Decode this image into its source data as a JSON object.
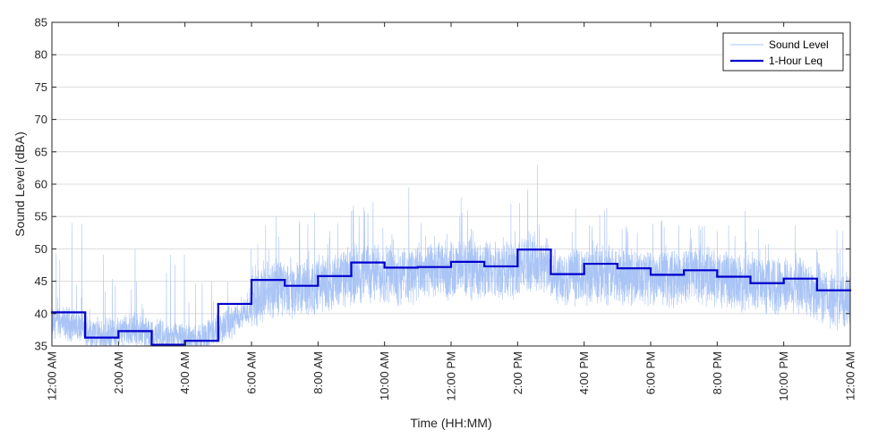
{
  "chart_data": {
    "type": "line",
    "title": "",
    "xlabel": "Time (HH:MM)",
    "ylabel": "Sound Level (dBA)",
    "xlim_hours": [
      0,
      24
    ],
    "ylim": [
      35,
      85
    ],
    "yticks": [
      35,
      40,
      45,
      50,
      55,
      60,
      65,
      70,
      75,
      80,
      85
    ],
    "xticks": [
      {
        "hour": 0,
        "label": "12:00 AM"
      },
      {
        "hour": 2,
        "label": "2:00 AM"
      },
      {
        "hour": 4,
        "label": "4:00 AM"
      },
      {
        "hour": 6,
        "label": "6:00 AM"
      },
      {
        "hour": 8,
        "label": "8:00 AM"
      },
      {
        "hour": 10,
        "label": "10:00 AM"
      },
      {
        "hour": 12,
        "label": "12:00 PM"
      },
      {
        "hour": 14,
        "label": "2:00 PM"
      },
      {
        "hour": 16,
        "label": "4:00 PM"
      },
      {
        "hour": 18,
        "label": "6:00 PM"
      },
      {
        "hour": 20,
        "label": "8:00 PM"
      },
      {
        "hour": 22,
        "label": "10:00 PM"
      },
      {
        "hour": 24,
        "label": "12:00 AM"
      }
    ],
    "grid": "horizontal",
    "legend_position": "top-right",
    "series": [
      {
        "name": "Sound Level",
        "color": "#a9c4f5",
        "style": "thin-noisy",
        "hourly_baseline": [
          38.5,
          36.5,
          37.5,
          36,
          36,
          39,
          44,
          43.5,
          45,
          46.5,
          46,
          46.5,
          47,
          46.5,
          48,
          45.5,
          46,
          46,
          45.5,
          46,
          45,
          44.5,
          44.5,
          42
        ],
        "peaks": [
          {
            "hour": 0.6,
            "value": 54
          },
          {
            "hour": 2.5,
            "value": 50
          },
          {
            "hour": 4.8,
            "value": 45
          },
          {
            "hour": 8.6,
            "value": 54
          },
          {
            "hour": 11.1,
            "value": 54
          },
          {
            "hour": 12.3,
            "value": 58
          },
          {
            "hour": 13.8,
            "value": 57
          },
          {
            "hour": 14.6,
            "value": 63
          },
          {
            "hour": 19.5,
            "value": 53
          },
          {
            "hour": 23.6,
            "value": 53
          }
        ]
      },
      {
        "name": "1-Hour Leq",
        "color": "#0000cc",
        "style": "step",
        "x_hours": [
          0,
          1,
          2,
          3,
          4,
          5,
          6,
          7,
          8,
          9,
          10,
          11,
          12,
          13,
          14,
          15,
          16,
          17,
          18,
          19,
          20,
          21,
          22,
          23
        ],
        "values": [
          40.2,
          36.3,
          37.3,
          35.2,
          35.8,
          41.5,
          45.2,
          44.3,
          45.8,
          47.9,
          47.1,
          47.2,
          48.0,
          47.3,
          49.9,
          46.1,
          47.7,
          47.0,
          46.0,
          46.7,
          45.7,
          44.7,
          45.4,
          43.6
        ]
      }
    ]
  }
}
